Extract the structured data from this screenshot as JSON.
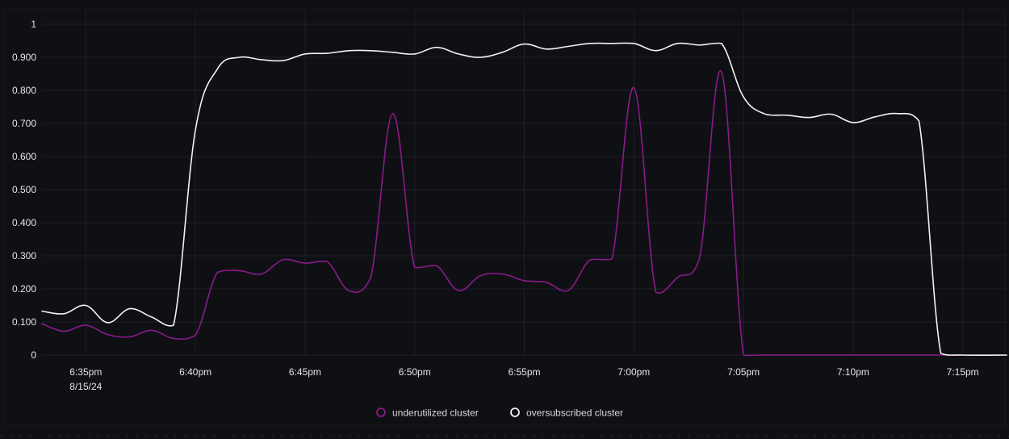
{
  "colors": {
    "background": "#0f1014",
    "grid": "#1e2026",
    "underutilized": "#8a1a8a",
    "oversubscribed": "#f2f2f5"
  },
  "chart_data": {
    "type": "line",
    "title": "",
    "xlabel": "",
    "ylabel": "",
    "ylim": [
      0,
      1
    ],
    "xlim": [
      "6:33pm",
      "7:17pm"
    ],
    "grid": true,
    "legend_position": "bottom-center",
    "y_ticks": [
      "1",
      "0.900",
      "0.800",
      "0.700",
      "0.600",
      "0.500",
      "0.400",
      "0.300",
      "0.200",
      "0.100",
      "0"
    ],
    "x_ticks": [
      {
        "label": "6:35pm",
        "sub": "8/15/24"
      },
      {
        "label": "6:40pm",
        "sub": ""
      },
      {
        "label": "6:45pm",
        "sub": ""
      },
      {
        "label": "6:50pm",
        "sub": ""
      },
      {
        "label": "6:55pm",
        "sub": ""
      },
      {
        "label": "7:00pm",
        "sub": ""
      },
      {
        "label": "7:05pm",
        "sub": ""
      },
      {
        "label": "7:10pm",
        "sub": ""
      },
      {
        "label": "7:15pm",
        "sub": ""
      }
    ],
    "series": [
      {
        "name": "underutilized cluster",
        "color": "#8a1a8a",
        "points": [
          [
            "6:33pm",
            0.095
          ],
          [
            "6:34pm",
            0.072
          ],
          [
            "6:35pm",
            0.09
          ],
          [
            "6:36pm",
            0.062
          ],
          [
            "6:37pm",
            0.055
          ],
          [
            "6:38pm",
            0.075
          ],
          [
            "6:39pm",
            0.05
          ],
          [
            "6:40pm",
            0.06
          ],
          [
            "6:41pm",
            0.25
          ],
          [
            "6:42pm",
            0.255
          ],
          [
            "6:43pm",
            0.245
          ],
          [
            "6:44pm",
            0.288
          ],
          [
            "6:45pm",
            0.278
          ],
          [
            "6:46pm",
            0.283
          ],
          [
            "6:47pm",
            0.195
          ],
          [
            "6:48pm",
            0.235
          ],
          [
            "6:49pm",
            0.73
          ],
          [
            "6:50pm",
            0.265
          ],
          [
            "6:51pm",
            0.27
          ],
          [
            "6:52pm",
            0.195
          ],
          [
            "6:53pm",
            0.24
          ],
          [
            "6:54pm",
            0.245
          ],
          [
            "6:55pm",
            0.225
          ],
          [
            "6:56pm",
            0.22
          ],
          [
            "6:57pm",
            0.195
          ],
          [
            "6:58pm",
            0.288
          ],
          [
            "6:59pm",
            0.29
          ],
          [
            "7:00pm",
            0.808
          ],
          [
            "7:01pm",
            0.19
          ],
          [
            "7:02pm",
            0.235
          ],
          [
            "7:03pm",
            0.295
          ],
          [
            "7:04pm",
            0.855
          ],
          [
            "7:05pm",
            0.0
          ],
          [
            "7:06pm",
            0.0
          ],
          [
            "7:10pm",
            0.0
          ],
          [
            "7:15pm",
            0.0
          ],
          [
            "7:17pm",
            0.0
          ]
        ]
      },
      {
        "name": "oversubscribed cluster",
        "color": "#f2f2f5",
        "points": [
          [
            "6:33pm",
            0.133
          ],
          [
            "6:34pm",
            0.125
          ],
          [
            "6:35pm",
            0.15
          ],
          [
            "6:36pm",
            0.098
          ],
          [
            "6:37pm",
            0.14
          ],
          [
            "6:38pm",
            0.115
          ],
          [
            "6:39pm",
            0.09
          ],
          [
            "6:40pm",
            0.68
          ],
          [
            "6:41pm",
            0.865
          ],
          [
            "6:42pm",
            0.9
          ],
          [
            "6:43pm",
            0.893
          ],
          [
            "6:44pm",
            0.89
          ],
          [
            "6:45pm",
            0.91
          ],
          [
            "6:46pm",
            0.912
          ],
          [
            "6:47pm",
            0.92
          ],
          [
            "6:48pm",
            0.92
          ],
          [
            "6:49pm",
            0.915
          ],
          [
            "6:50pm",
            0.91
          ],
          [
            "6:51pm",
            0.93
          ],
          [
            "6:52pm",
            0.91
          ],
          [
            "6:53pm",
            0.9
          ],
          [
            "6:54pm",
            0.915
          ],
          [
            "6:55pm",
            0.94
          ],
          [
            "6:56pm",
            0.925
          ],
          [
            "6:57pm",
            0.933
          ],
          [
            "6:58pm",
            0.942
          ],
          [
            "6:59pm",
            0.942
          ],
          [
            "7:00pm",
            0.942
          ],
          [
            "7:01pm",
            0.92
          ],
          [
            "7:02pm",
            0.942
          ],
          [
            "7:03pm",
            0.937
          ],
          [
            "7:04pm",
            0.942
          ],
          [
            "7:05pm",
            0.78
          ],
          [
            "7:06pm",
            0.728
          ],
          [
            "7:07pm",
            0.725
          ],
          [
            "7:08pm",
            0.718
          ],
          [
            "7:09pm",
            0.728
          ],
          [
            "7:10pm",
            0.703
          ],
          [
            "7:11pm",
            0.72
          ],
          [
            "7:12pm",
            0.73
          ],
          [
            "7:13pm",
            0.708
          ],
          [
            "7:14pm",
            0.005
          ],
          [
            "7:15pm",
            0.0
          ],
          [
            "7:17pm",
            0.0
          ]
        ]
      }
    ]
  }
}
